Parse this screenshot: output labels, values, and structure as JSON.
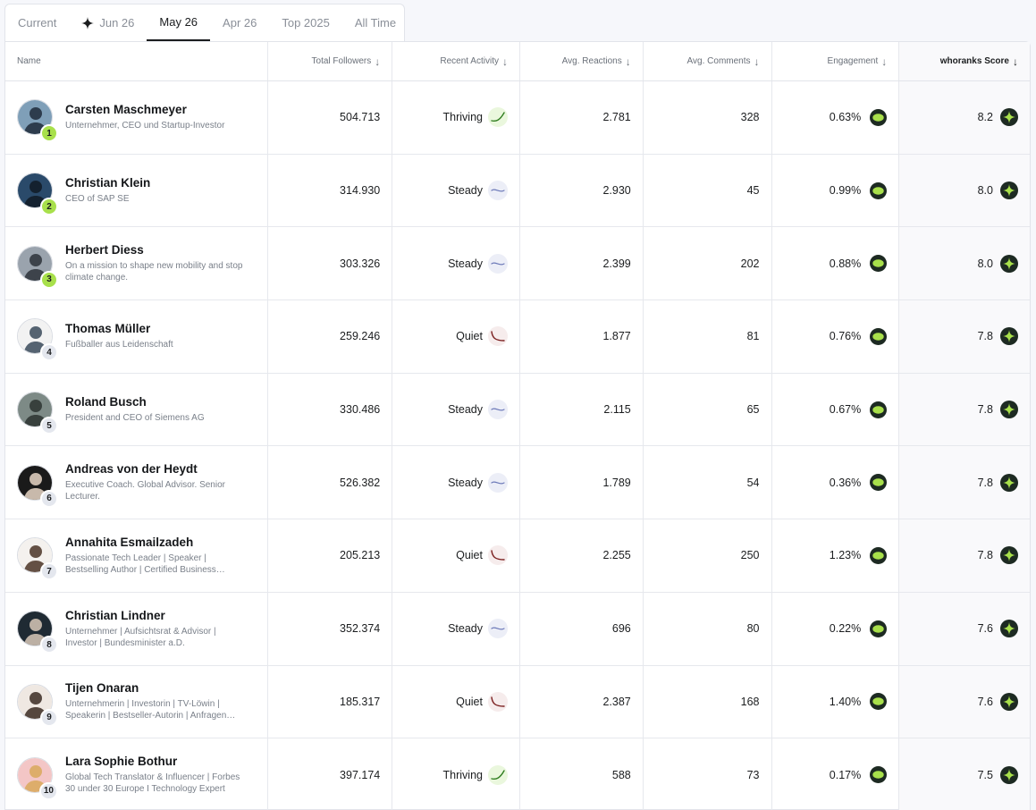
{
  "tabs": [
    {
      "label": "Current",
      "active": false,
      "icon": null
    },
    {
      "label": "Jun 26",
      "active": false,
      "icon": "sparkle-icon"
    },
    {
      "label": "May 26",
      "active": true,
      "icon": null
    },
    {
      "label": "Apr 26",
      "active": false,
      "icon": null
    },
    {
      "label": "Top 2025",
      "active": false,
      "icon": null
    },
    {
      "label": "All Time",
      "active": false,
      "icon": null
    }
  ],
  "columns": {
    "name": "Name",
    "followers": "Total Followers",
    "activity": "Recent Activity",
    "reactions": "Avg. Reactions",
    "comments": "Avg. Comments",
    "engagement": "Engagement",
    "score": "whoranks Score"
  },
  "colors": {
    "accent_green": "#a8e04b",
    "badge_dark": "#1d2a22",
    "thriving": "#2f7d1f",
    "steady": "#6b78b8",
    "quiet": "#7a1e1e"
  },
  "rows": [
    {
      "rank": "1",
      "name": "Carsten Maschmeyer",
      "title": "Unternehmer, CEO und Startup-Investor",
      "followers": "504.713",
      "activity": "Thriving",
      "activity_type": "thriving",
      "reactions": "2.781",
      "comments": "328",
      "engagement": "0.63%",
      "score": "8.2",
      "avatar_bg": "#7f9fb8",
      "avatar_fg": "#1e2a3a"
    },
    {
      "rank": "2",
      "name": "Christian Klein",
      "title": "CEO of SAP SE",
      "followers": "314.930",
      "activity": "Steady",
      "activity_type": "steady",
      "reactions": "2.930",
      "comments": "45",
      "engagement": "0.99%",
      "score": "8.0",
      "avatar_bg": "#2a4a6a",
      "avatar_fg": "#111a24"
    },
    {
      "rank": "3",
      "name": "Herbert Diess",
      "title": "On a mission to shape new mobility and stop climate change.",
      "followers": "303.326",
      "activity": "Steady",
      "activity_type": "steady",
      "reactions": "2.399",
      "comments": "202",
      "engagement": "0.88%",
      "score": "8.0",
      "avatar_bg": "#9aa3ad",
      "avatar_fg": "#2d333a"
    },
    {
      "rank": "4",
      "name": "Thomas Müller",
      "title": "Fußballer aus Leidenschaft",
      "followers": "259.246",
      "activity": "Quiet",
      "activity_type": "quiet",
      "reactions": "1.877",
      "comments": "81",
      "engagement": "0.76%",
      "score": "7.8",
      "avatar_bg": "#f2f2f2",
      "avatar_fg": "#3a4a5a"
    },
    {
      "rank": "5",
      "name": "Roland Busch",
      "title": "President and CEO of Siemens AG",
      "followers": "330.486",
      "activity": "Steady",
      "activity_type": "steady",
      "reactions": "2.115",
      "comments": "65",
      "engagement": "0.67%",
      "score": "7.8",
      "avatar_bg": "#7d8a86",
      "avatar_fg": "#2b3230"
    },
    {
      "rank": "6",
      "name": "Andreas von der Heydt",
      "title": "Executive Coach. Global Advisor. Senior Lecturer.",
      "followers": "526.382",
      "activity": "Steady",
      "activity_type": "steady",
      "reactions": "1.789",
      "comments": "54",
      "engagement": "0.36%",
      "score": "7.8",
      "avatar_bg": "#1a1a1a",
      "avatar_fg": "#e8d6c6"
    },
    {
      "rank": "7",
      "name": "Annahita Esmailzadeh",
      "title": "Passionate Tech Leader | Speaker | Bestselling Author | Certified Business Coach",
      "followers": "205.213",
      "activity": "Quiet",
      "activity_type": "quiet",
      "reactions": "2.255",
      "comments": "250",
      "engagement": "1.23%",
      "score": "7.8",
      "avatar_bg": "#f4f1ee",
      "avatar_fg": "#4a3426"
    },
    {
      "rank": "8",
      "name": "Christian Lindner",
      "title": "Unternehmer | Aufsichtsrat & Advisor | Investor | Bundesminister a.D.",
      "followers": "352.374",
      "activity": "Steady",
      "activity_type": "steady",
      "reactions": "696",
      "comments": "80",
      "engagement": "0.22%",
      "score": "7.6",
      "avatar_bg": "#1f2a33",
      "avatar_fg": "#d8c8b8"
    },
    {
      "rank": "9",
      "name": "Tijen Onaran",
      "title": "Unternehmerin | Investorin | TV-Löwin | Speakerin | Bestseller-Autorin | Anfragen über Management",
      "followers": "185.317",
      "activity": "Quiet",
      "activity_type": "quiet",
      "reactions": "2.387",
      "comments": "168",
      "engagement": "1.40%",
      "score": "7.6",
      "avatar_bg": "#efe8e2",
      "avatar_fg": "#3a2a22"
    },
    {
      "rank": "10",
      "name": "Lara Sophie Bothur",
      "title": "Global Tech Translator & Influencer | Forbes 30 under 30 Europe I Technology Expert",
      "followers": "397.174",
      "activity": "Thriving",
      "activity_type": "thriving",
      "reactions": "588",
      "comments": "73",
      "engagement": "0.17%",
      "score": "7.5",
      "avatar_bg": "#f3c6c6",
      "avatar_fg": "#d8a85a"
    }
  ]
}
